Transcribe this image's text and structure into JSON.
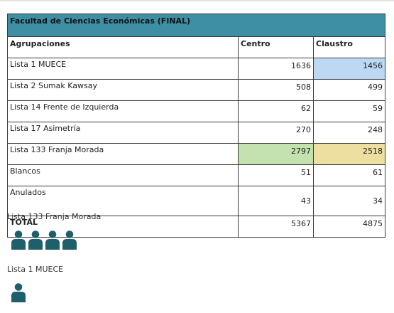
{
  "table": {
    "title": "Facultad de Ciencias Económicas (FINAL)",
    "headers": [
      "Agrupaciones",
      "Centro",
      "Claustro"
    ],
    "rows": [
      {
        "name": "Lista 1 MUECE",
        "centro": "1636",
        "claustro": "1456"
      },
      {
        "name": "Lista 2 Sumak Kawsay",
        "centro": "508",
        "claustro": "499"
      },
      {
        "name": "Lista 14 Frente de Izquierda",
        "centro": "62",
        "claustro": "59"
      },
      {
        "name": "Lista 17 Asimetría",
        "centro": "270",
        "claustro": "248"
      },
      {
        "name": "Lista 133 Franja Morada",
        "centro": "2797",
        "claustro": "2518"
      },
      {
        "name": "Blancos",
        "centro": "51",
        "claustro": "61"
      },
      {
        "name": "Anulados",
        "centro": "43",
        "claustro": "34"
      }
    ],
    "total": {
      "label": "TOTAL",
      "centro": "5367",
      "claustro": "4875"
    }
  },
  "winners": [
    {
      "name": "Lista 133 Franja Morada",
      "icon_count": 4,
      "icon": "person-icon"
    },
    {
      "name": "Lista 1 MUECE",
      "icon_count": 1,
      "icon": "person-icon"
    }
  ],
  "colors": {
    "header_bg": "#3f8fa4",
    "icon": "#1f5f6b",
    "highlight_blue": "#bcd8f3",
    "highlight_green": "#c4e2b0",
    "highlight_yellow": "#eddfa0"
  }
}
